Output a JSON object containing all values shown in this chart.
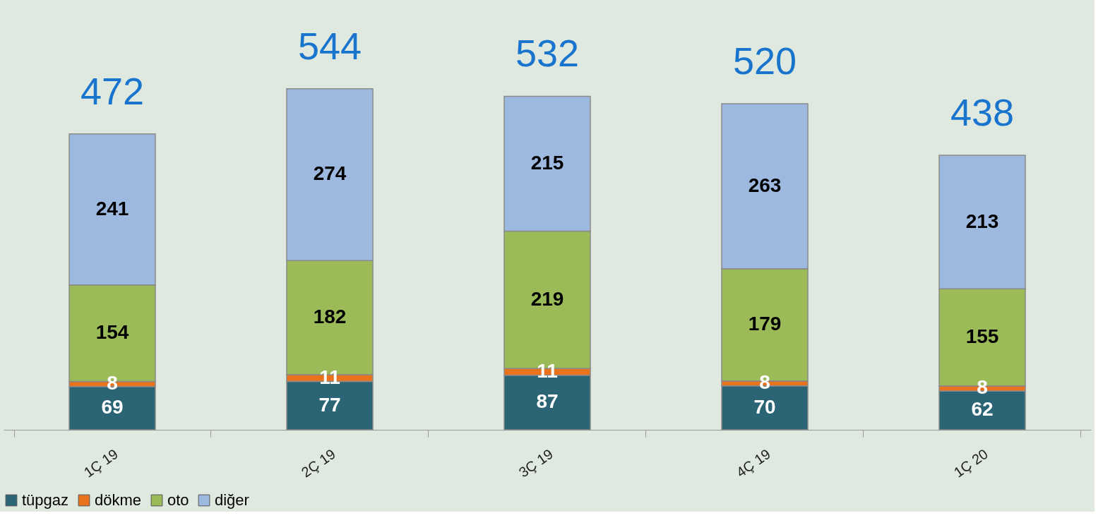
{
  "chart_data": {
    "type": "bar",
    "stacked": true,
    "relative": false,
    "data_labels": true,
    "legend": "bottom",
    "categories": [
      "1Ç 19",
      "2Ç 19",
      "3Ç 19",
      "4Ç 19",
      "1Ç 20"
    ],
    "series": [
      {
        "name": "tüpgaz",
        "color": "#2a6475",
        "values": [
          69,
          77,
          87,
          70,
          62
        ]
      },
      {
        "name": "dökme",
        "color": "#e9731c",
        "values": [
          8,
          11,
          11,
          8,
          8
        ]
      },
      {
        "name": "oto",
        "color": "#9bbb59",
        "values": [
          154,
          182,
          219,
          179,
          155
        ]
      },
      {
        "name": "diğer",
        "color": "#9db9e0",
        "values": [
          241,
          274,
          215,
          263,
          213
        ]
      }
    ],
    "totals": [
      "472",
      "544",
      "532",
      "520",
      "438"
    ]
  }
}
